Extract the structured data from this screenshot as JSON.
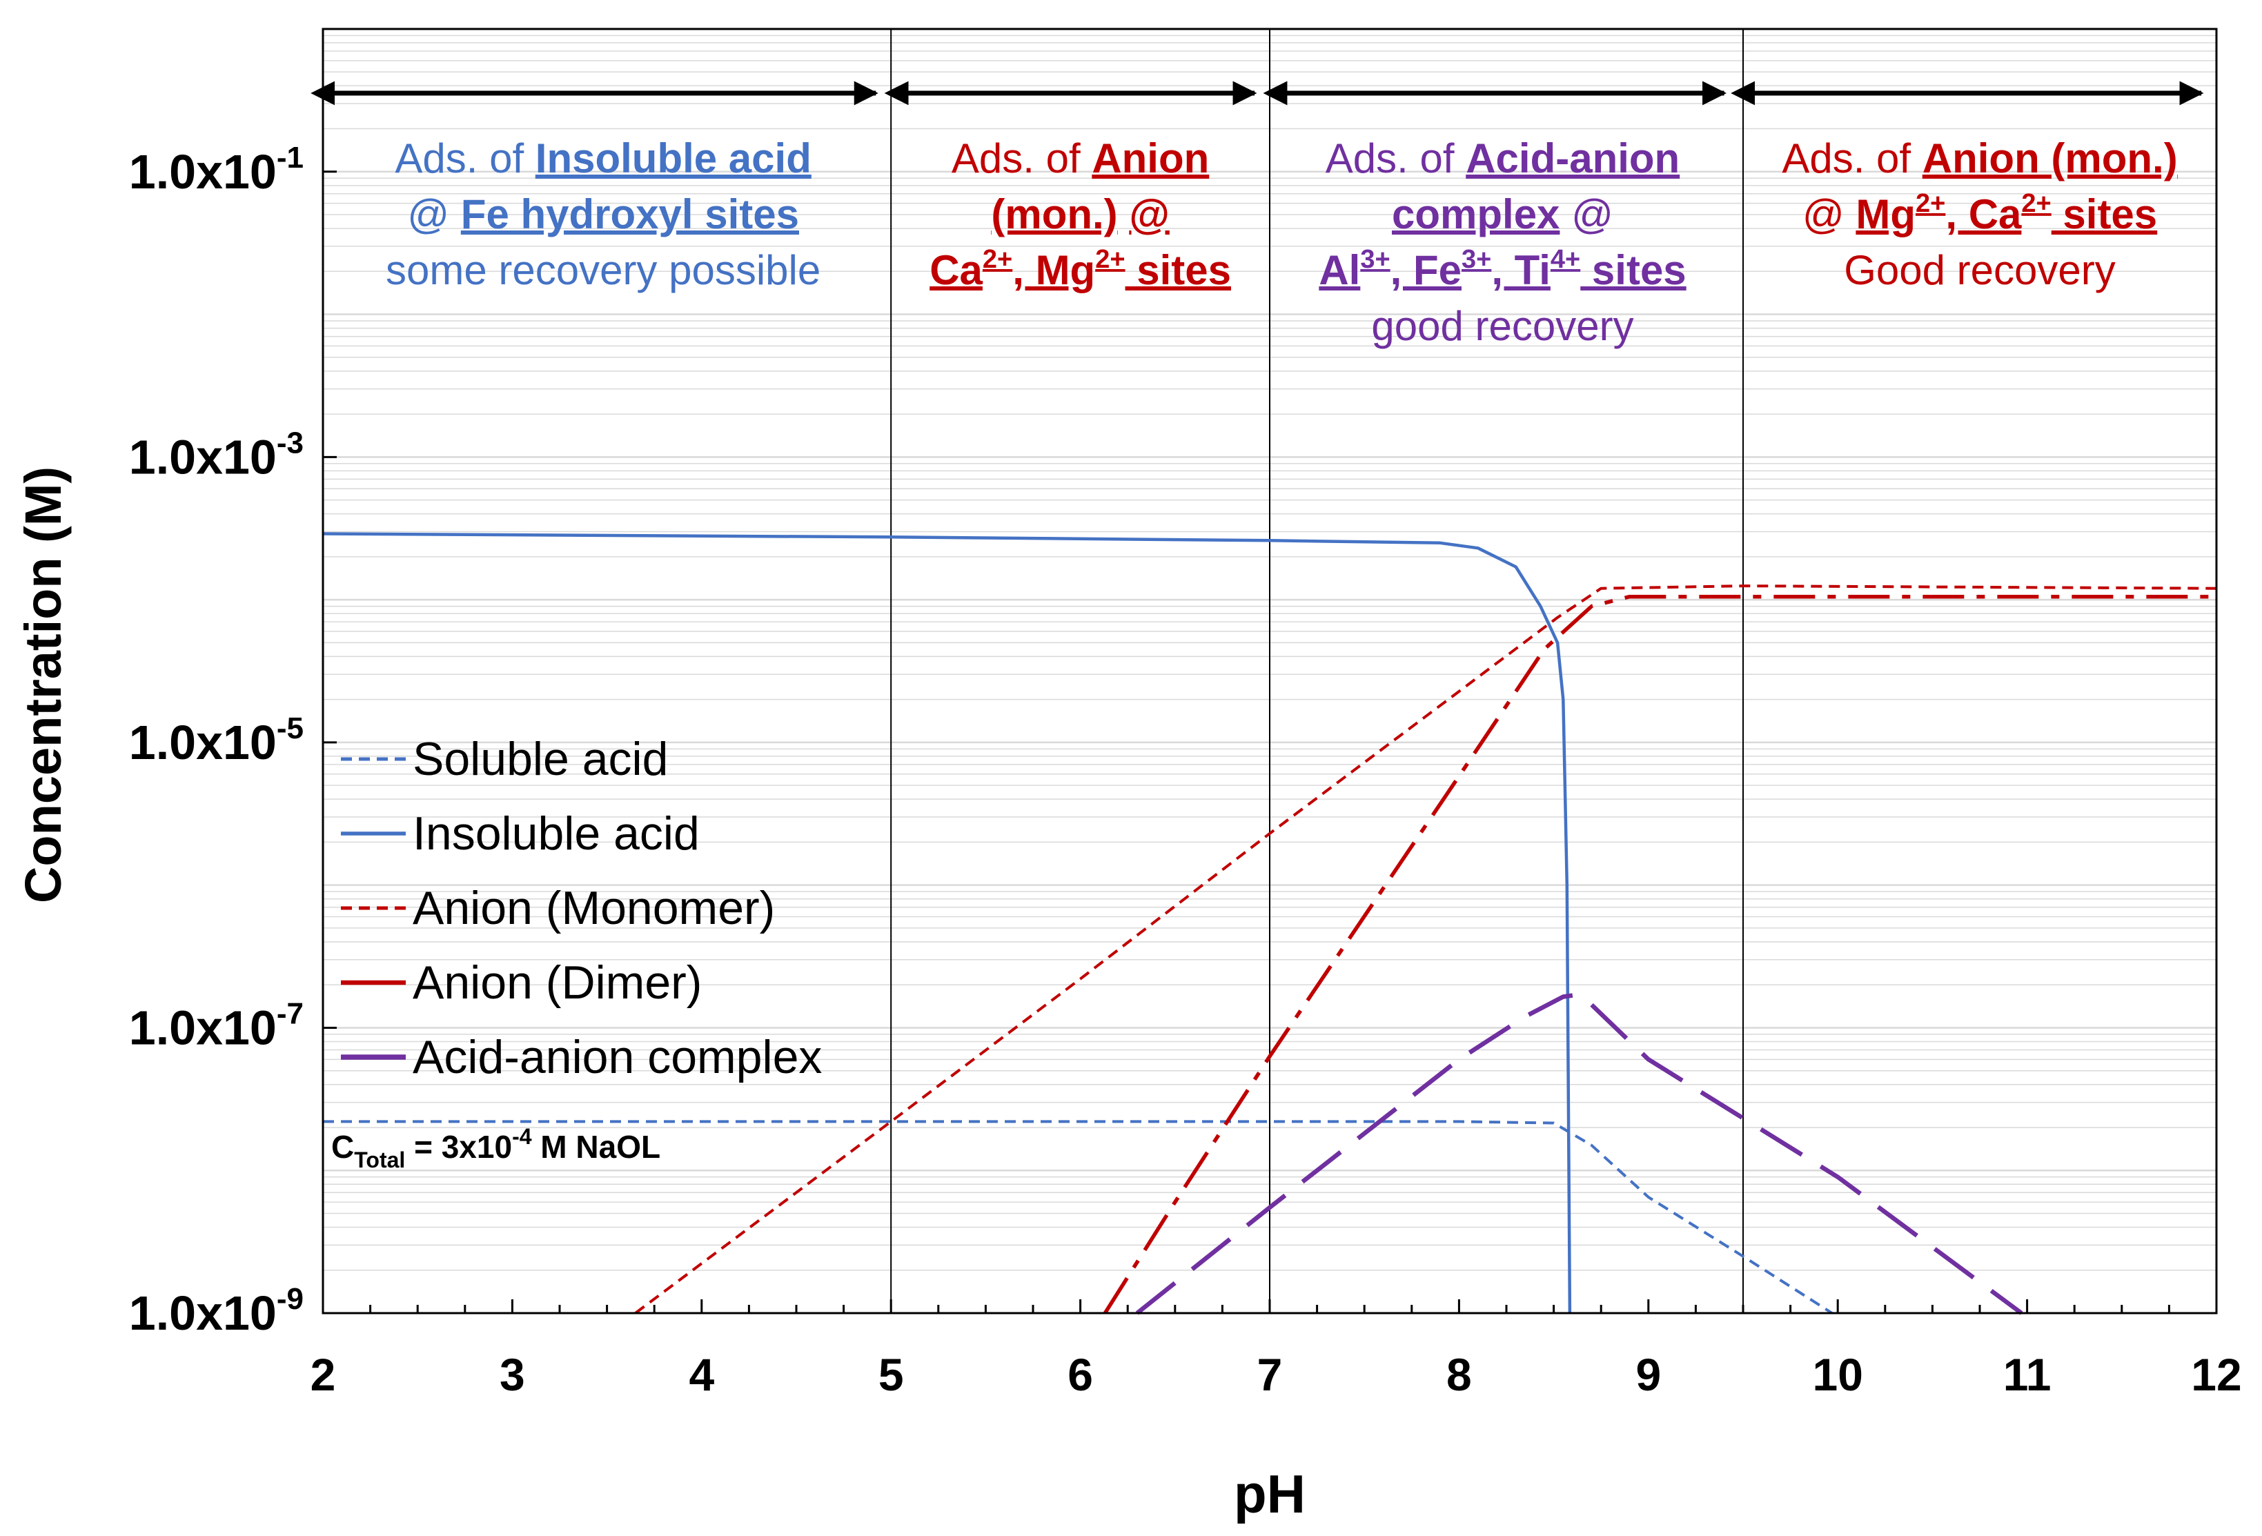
{
  "chart_data": {
    "type": "line",
    "xlabel": "pH",
    "ylabel": "Concentration (M)",
    "x_range": [
      2,
      12
    ],
    "x_ticks": [
      "2",
      "3",
      "4",
      "5",
      "6",
      "7",
      "8",
      "9",
      "10",
      "11",
      "12"
    ],
    "y_scale": "log",
    "y_range": [
      1e-09,
      1
    ],
    "y_ticks": [
      {
        "value": 1e-09,
        "mantissa": "1.0x10",
        "exp": "-9"
      },
      {
        "value": 1e-07,
        "mantissa": "1.0x10",
        "exp": "-7"
      },
      {
        "value": 1e-05,
        "mantissa": "1.0x10",
        "exp": "-5"
      },
      {
        "value": 0.001,
        "mantissa": "1.0x10",
        "exp": "-3"
      },
      {
        "value": 0.1,
        "mantissa": "1.0x10",
        "exp": "-1"
      }
    ],
    "dividers_ph": [
      5,
      7,
      9.5
    ],
    "region_arrows": [
      [
        2.05,
        4.92
      ],
      [
        5.08,
        6.92
      ],
      [
        7.08,
        9.4
      ],
      [
        9.55,
        11.92
      ]
    ],
    "colors": {
      "blue": "#4472C4",
      "red": "#C00000",
      "purple": "#7030A0",
      "axis": "#000000",
      "grid": "#D9D9D9"
    },
    "regions": [
      {
        "center_ph": 3.48,
        "color": "#4472C4",
        "lines": [
          [
            {
              "t": "Ads. of ",
              "b": false,
              "u": false
            },
            {
              "t": "Insoluble acid",
              "b": true,
              "u": true
            }
          ],
          [
            {
              "t": "@ ",
              "b": false,
              "u": false
            },
            {
              "t": "Fe hydroxyl sites",
              "b": true,
              "u": true
            }
          ],
          [
            {
              "t": "some recovery possible",
              "b": false,
              "u": false
            }
          ]
        ]
      },
      {
        "center_ph": 6.0,
        "color": "#C00000",
        "lines": [
          [
            {
              "t": "Ads. of ",
              "b": false,
              "u": false
            },
            {
              "t": "Anion",
              "b": true,
              "u": true
            }
          ],
          [
            {
              "t": "(mon.)",
              "b": true,
              "u": true
            },
            {
              "t": " ",
              "b": false,
              "u": false
            },
            {
              "t": "@",
              "b": true,
              "u": true
            }
          ],
          [
            {
              "t": "Ca",
              "b": true,
              "u": true
            },
            {
              "t": "2+",
              "b": true,
              "u": true,
              "sup": true
            },
            {
              "t": ", Mg",
              "b": true,
              "u": true
            },
            {
              "t": "2+",
              "b": true,
              "u": true,
              "sup": true
            },
            {
              "t": " sites",
              "b": true,
              "u": true
            }
          ]
        ]
      },
      {
        "center_ph": 8.23,
        "color": "#7030A0",
        "lines": [
          [
            {
              "t": "Ads. of ",
              "b": false,
              "u": false
            },
            {
              "t": "Acid-anion",
              "b": true,
              "u": true
            }
          ],
          [
            {
              "t": "complex",
              "b": true,
              "u": true
            },
            {
              "t": " @",
              "b": false,
              "u": false
            }
          ],
          [
            {
              "t": "Al",
              "b": true,
              "u": true
            },
            {
              "t": "3+",
              "b": true,
              "u": true,
              "sup": true
            },
            {
              "t": ", Fe",
              "b": true,
              "u": true
            },
            {
              "t": "3+",
              "b": true,
              "u": true,
              "sup": true
            },
            {
              "t": ", Ti",
              "b": true,
              "u": true
            },
            {
              "t": "4+",
              "b": true,
              "u": true,
              "sup": true
            },
            {
              "t": " sites",
              "b": true,
              "u": true
            }
          ],
          [
            {
              "t": "good recovery",
              "b": false,
              "u": false
            }
          ]
        ]
      },
      {
        "center_ph": 10.75,
        "color": "#C00000",
        "lines": [
          [
            {
              "t": "Ads. of ",
              "b": false,
              "u": false
            },
            {
              "t": "Anion (mon.)",
              "b": true,
              "u": true
            }
          ],
          [
            {
              "t": "@ ",
              "b": false,
              "u": false
            },
            {
              "t": "Mg",
              "b": true,
              "u": true
            },
            {
              "t": "2+",
              "b": true,
              "u": true,
              "sup": true
            },
            {
              "t": ", Ca",
              "b": true,
              "u": true
            },
            {
              "t": "2+",
              "b": true,
              "u": true,
              "sup": true
            },
            {
              "t": " sites",
              "b": true,
              "u": true
            }
          ],
          [
            {
              "t": "Good recovery",
              "b": false,
              "u": false
            }
          ]
        ]
      }
    ],
    "series": [
      {
        "name": "Soluble acid",
        "color": "#4472C4",
        "dash": "short",
        "width": 4,
        "points": [
          [
            2,
            2.2e-08
          ],
          [
            5,
            2.2e-08
          ],
          [
            7,
            2.2e-08
          ],
          [
            8.0,
            2.2e-08
          ],
          [
            8.5,
            2.15e-08
          ],
          [
            8.7,
            1.5e-08
          ],
          [
            9.0,
            6.5e-09
          ],
          [
            9.5,
            2.5e-09
          ],
          [
            9.97,
            1e-09
          ]
        ]
      },
      {
        "name": "Insoluble acid",
        "color": "#4472C4",
        "dash": "solid",
        "width": 4.5,
        "points": [
          [
            2,
            0.00029
          ],
          [
            5,
            0.000275
          ],
          [
            7,
            0.00026
          ],
          [
            7.9,
            0.00025
          ],
          [
            8.1,
            0.00023
          ],
          [
            8.3,
            0.00017
          ],
          [
            8.43,
            9e-05
          ],
          [
            8.52,
            5e-05
          ],
          [
            8.55,
            2e-05
          ],
          [
            8.57,
            1e-06
          ],
          [
            8.585,
            1e-09
          ]
        ]
      },
      {
        "name": "Anion (Monomer)",
        "color": "#C00000",
        "dash": "short",
        "width": 4,
        "points": [
          [
            3.65,
            1e-09
          ],
          [
            5,
            2.2e-08
          ],
          [
            6,
            2.2e-07
          ],
          [
            7,
            2.3e-06
          ],
          [
            8.52,
            7.5e-05
          ],
          [
            8.75,
            0.00012
          ],
          [
            9.5,
            0.000125
          ],
          [
            12,
            0.00012
          ]
        ]
      },
      {
        "name": "Anion (Dimer)",
        "color": "#C00000",
        "dash": "dashdot",
        "width": 5.5,
        "points": [
          [
            6.13,
            1e-09
          ],
          [
            6.5,
            6e-09
          ],
          [
            7,
            6.3e-08
          ],
          [
            8,
            5.8e-06
          ],
          [
            8.45,
            4.5e-05
          ],
          [
            8.7,
            9e-05
          ],
          [
            8.9,
            0.000105
          ],
          [
            12,
            0.000105
          ]
        ]
      },
      {
        "name": "Acid-anion complex",
        "color": "#7030A0",
        "dash": "long",
        "width": 6.5,
        "points": [
          [
            6.3,
            1e-09
          ],
          [
            7,
            5.5e-09
          ],
          [
            8,
            6e-08
          ],
          [
            8.35,
            1.2e-07
          ],
          [
            8.55,
            1.65e-07
          ],
          [
            8.62,
            1.7e-07
          ],
          [
            8.7,
            1.45e-07
          ],
          [
            9,
            6e-08
          ],
          [
            10,
            9e-09
          ],
          [
            10.97,
            1e-09
          ]
        ]
      }
    ],
    "legend": {
      "position": "left-middle",
      "items": [
        "Soluble acid",
        "Insoluble acid",
        "Anion (Monomer)",
        "Anion (Dimer)",
        "Acid-anion complex"
      ]
    },
    "annotation": {
      "main": "C",
      "sub": "Total",
      "text1": " = 3x10",
      "sup": "-4",
      "text2": " M NaOL"
    }
  }
}
